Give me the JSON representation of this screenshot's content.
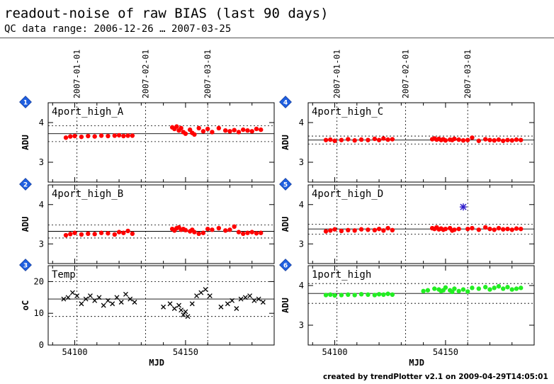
{
  "header": {
    "title": "readout-noise of raw BIAS (last 90 days)",
    "subtitle": "QC data range: 2006-12-26 … 2007-03-25"
  },
  "footer": "created by trendPlotter v2.1 on 2009-04-29T14:05:01",
  "colors": {
    "red": "#ff0000",
    "green": "#22ee22",
    "black": "#000000",
    "outlier": "#3322cc",
    "badge": "#1f5fe0"
  },
  "chart_data": [
    {
      "type": "scatter",
      "badge": "1",
      "label": "4port_high_A",
      "ylabel": "ADU",
      "ylim": [
        2.5,
        4.5
      ],
      "yticks": [
        3,
        4
      ],
      "xlim": [
        54088,
        54190
      ],
      "median": 3.72,
      "band": [
        3.52,
        3.92
      ],
      "color": "red",
      "date_ticks": [
        "2007-01-01",
        "2007-02-01",
        "2007-03-01"
      ],
      "x": [
        54096,
        54098,
        54100,
        54103,
        54106,
        54109,
        54112,
        54115,
        54118,
        54120,
        54122,
        54124,
        54126,
        54144,
        54145,
        54146,
        54147,
        54148,
        54149,
        54150,
        54152,
        54153,
        54154,
        54156,
        54158,
        54160,
        54162,
        54165,
        54168,
        54170,
        54172,
        54174,
        54176,
        54178,
        54180,
        54182,
        54184
      ],
      "y": [
        3.62,
        3.65,
        3.66,
        3.64,
        3.66,
        3.65,
        3.67,
        3.66,
        3.67,
        3.68,
        3.66,
        3.67,
        3.67,
        3.88,
        3.84,
        3.9,
        3.8,
        3.86,
        3.76,
        3.72,
        3.82,
        3.74,
        3.7,
        3.86,
        3.78,
        3.84,
        3.76,
        3.86,
        3.8,
        3.78,
        3.81,
        3.76,
        3.82,
        3.8,
        3.78,
        3.84,
        3.82
      ],
      "outliers": []
    },
    {
      "type": "scatter",
      "badge": "2",
      "label": "4port_high_B",
      "ylabel": "ADU",
      "ylim": [
        2.5,
        4.5
      ],
      "yticks": [
        3,
        4
      ],
      "xlim": [
        54088,
        54190
      ],
      "median": 3.32,
      "band": [
        3.15,
        3.48
      ],
      "color": "red",
      "date_ticks": [
        "2007-01-01",
        "2007-02-01",
        "2007-03-01"
      ],
      "x": [
        54096,
        54098,
        54100,
        54103,
        54106,
        54109,
        54112,
        54115,
        54118,
        54120,
        54122,
        54124,
        54126,
        54144,
        54145,
        54146,
        54147,
        54148,
        54149,
        54150,
        54152,
        54153,
        54154,
        54156,
        54158,
        54160,
        54162,
        54165,
        54168,
        54170,
        54172,
        54174,
        54176,
        54178,
        54180,
        54182,
        54184
      ],
      "y": [
        3.22,
        3.25,
        3.28,
        3.24,
        3.26,
        3.25,
        3.28,
        3.27,
        3.24,
        3.3,
        3.28,
        3.33,
        3.26,
        3.38,
        3.34,
        3.4,
        3.42,
        3.36,
        3.38,
        3.35,
        3.32,
        3.36,
        3.3,
        3.26,
        3.28,
        3.38,
        3.36,
        3.4,
        3.34,
        3.36,
        3.44,
        3.3,
        3.26,
        3.28,
        3.3,
        3.27,
        3.28
      ],
      "outliers": []
    },
    {
      "type": "scatter",
      "badge": "3",
      "label": "Temp",
      "ylabel": "oC",
      "ylim": [
        0,
        25
      ],
      "yticks": [
        0,
        10,
        20
      ],
      "xlim": [
        54088,
        54190
      ],
      "median": 14.5,
      "band": [
        9.0,
        20.0
      ],
      "color": "black",
      "marker": "x",
      "x": [
        54095,
        54097,
        54099,
        54101,
        54103,
        54105,
        54107,
        54109,
        54111,
        54113,
        54115,
        54117,
        54119,
        54121,
        54123,
        54125,
        54127,
        54140,
        54143,
        54145,
        54147,
        54148,
        54149,
        54150,
        54151,
        54153,
        54155,
        54157,
        54159,
        54161,
        54166,
        54169,
        54171,
        54173,
        54175,
        54177,
        54179,
        54181,
        54183,
        54185
      ],
      "y": [
        14.5,
        15.0,
        16.5,
        15.5,
        13.0,
        14.5,
        15.5,
        14.0,
        15.0,
        12.5,
        14.0,
        13.0,
        15.0,
        13.5,
        16.0,
        14.5,
        13.5,
        12.0,
        13.0,
        11.5,
        12.5,
        11.0,
        9.5,
        10.5,
        9.0,
        13.0,
        15.5,
        16.5,
        17.5,
        15.5,
        12.0,
        13.0,
        14.0,
        11.5,
        14.5,
        15.0,
        15.5,
        14.0,
        14.5,
        13.5
      ],
      "outliers": []
    },
    {
      "type": "scatter",
      "badge": "4",
      "label": "4port_high_C",
      "ylabel": "ADU",
      "ylim": [
        2.5,
        4.5
      ],
      "yticks": [
        3,
        4
      ],
      "xlim": [
        54088,
        54190
      ],
      "median": 3.56,
      "band": [
        3.46,
        3.66
      ],
      "color": "red",
      "date_ticks": [
        "2007-01-01",
        "2007-02-01",
        "2007-03-01"
      ],
      "x": [
        54096,
        54098,
        54100,
        54103,
        54106,
        54109,
        54112,
        54115,
        54118,
        54120,
        54122,
        54124,
        54126,
        54144,
        54145,
        54146,
        54147,
        54148,
        54149,
        54150,
        54152,
        54153,
        54154,
        54156,
        54158,
        54160,
        54162,
        54165,
        54168,
        54170,
        54172,
        54174,
        54176,
        54178,
        54180,
        54182,
        54184
      ],
      "y": [
        3.56,
        3.57,
        3.54,
        3.56,
        3.58,
        3.55,
        3.57,
        3.56,
        3.59,
        3.56,
        3.6,
        3.57,
        3.58,
        3.58,
        3.6,
        3.57,
        3.59,
        3.56,
        3.58,
        3.55,
        3.57,
        3.56,
        3.59,
        3.57,
        3.55,
        3.56,
        3.62,
        3.54,
        3.58,
        3.56,
        3.55,
        3.57,
        3.54,
        3.56,
        3.55,
        3.57,
        3.56
      ],
      "outliers": []
    },
    {
      "type": "scatter",
      "badge": "5",
      "label": "4port_high_D",
      "ylabel": "ADU",
      "ylim": [
        2.5,
        4.5
      ],
      "yticks": [
        3,
        4
      ],
      "xlim": [
        54088,
        54190
      ],
      "median": 3.38,
      "band": [
        3.25,
        3.5
      ],
      "color": "red",
      "date_ticks": [
        "2007-01-01",
        "2007-02-01",
        "2007-03-01"
      ],
      "x": [
        54096,
        54098,
        54100,
        54103,
        54106,
        54109,
        54112,
        54115,
        54118,
        54120,
        54122,
        54124,
        54126,
        54144,
        54145,
        54146,
        54147,
        54148,
        54149,
        54150,
        54152,
        54153,
        54154,
        54156,
        54160,
        54162,
        54165,
        54168,
        54170,
        54172,
        54174,
        54176,
        54178,
        54180,
        54182,
        54184
      ],
      "y": [
        3.32,
        3.34,
        3.37,
        3.33,
        3.35,
        3.34,
        3.37,
        3.36,
        3.35,
        3.38,
        3.34,
        3.4,
        3.35,
        3.4,
        3.38,
        3.42,
        3.37,
        3.39,
        3.36,
        3.38,
        3.4,
        3.34,
        3.36,
        3.38,
        3.38,
        3.4,
        3.36,
        3.42,
        3.38,
        3.36,
        3.4,
        3.37,
        3.38,
        3.36,
        3.39,
        3.38
      ],
      "outliers": [
        {
          "x": 54158,
          "y": 3.94
        }
      ]
    },
    {
      "type": "scatter",
      "badge": "6",
      "label": "1port_high",
      "ylabel": "ADU",
      "ylim": [
        2.5,
        4.5
      ],
      "yticks": [
        3,
        4
      ],
      "xlim": [
        54088,
        54190
      ],
      "median": 3.8,
      "band": [
        3.55,
        4.05
      ],
      "color": "green",
      "xticks": [
        54100,
        54150
      ],
      "xlabel": "MJD",
      "x": [
        54096,
        54098,
        54100,
        54103,
        54106,
        54109,
        54112,
        54115,
        54118,
        54120,
        54122,
        54124,
        54126,
        54140,
        54142,
        54145,
        54147,
        54148,
        54149,
        54150,
        54152,
        54153,
        54154,
        54156,
        54158,
        54160,
        54162,
        54165,
        54168,
        54170,
        54172,
        54174,
        54176,
        54178,
        54180,
        54182,
        54184
      ],
      "y": [
        3.76,
        3.77,
        3.75,
        3.76,
        3.77,
        3.76,
        3.78,
        3.77,
        3.76,
        3.78,
        3.77,
        3.79,
        3.77,
        3.86,
        3.88,
        3.92,
        3.9,
        3.86,
        3.88,
        3.95,
        3.88,
        3.84,
        3.92,
        3.86,
        3.9,
        3.85,
        3.94,
        3.92,
        3.96,
        3.9,
        3.94,
        3.98,
        3.92,
        3.96,
        3.9,
        3.92,
        3.94
      ],
      "outliers": []
    }
  ],
  "shared_xlabel": "MJD",
  "shared_xticks": [
    54100,
    54150
  ]
}
